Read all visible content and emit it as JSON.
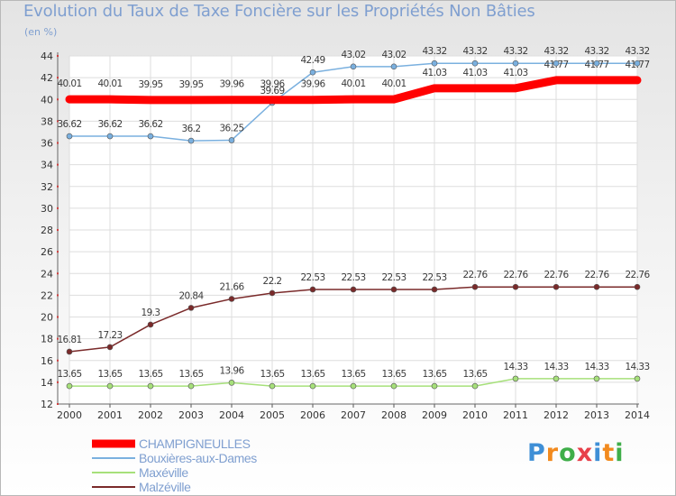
{
  "title": "Evolution du Taux de Taxe Foncière sur les Propriétés Non Bâties",
  "unit": "(en %)",
  "logo": {
    "letters": [
      "P",
      "r",
      "o",
      "x",
      "i",
      "t",
      "i"
    ],
    "colors": [
      "#3f8fd6",
      "#f28a1e",
      "#3fae49",
      "#e8404a",
      "#3f8fd6",
      "#f28a1e",
      "#3fae49"
    ]
  },
  "chart_data": {
    "type": "line",
    "title": "Evolution du Taux de Taxe Foncière sur les Propriétés Non Bâties",
    "ylabel": "(en %)",
    "xlabel": "",
    "ylim": [
      12,
      44
    ],
    "yticks": [
      12,
      14,
      16,
      18,
      20,
      22,
      24,
      26,
      28,
      30,
      32,
      34,
      36,
      38,
      40,
      42,
      44
    ],
    "x": [
      "2000",
      "2001",
      "2002",
      "2003",
      "2004",
      "2005",
      "2006",
      "2007",
      "2008",
      "2009",
      "2010",
      "2011",
      "2012",
      "2013",
      "2014"
    ],
    "grid": true,
    "series": [
      {
        "name": "CHAMPIGNEULLES",
        "color": "#ff0000",
        "values": [
          40.01,
          40.01,
          39.95,
          39.95,
          39.96,
          39.96,
          39.96,
          40.01,
          40.01,
          41.03,
          41.03,
          41.03,
          41.77,
          41.77,
          41.77
        ],
        "labels": [
          "40.01",
          "40.01",
          "39.95",
          "39.95",
          "39.96",
          "39.96",
          "39.96",
          "40.01",
          "40.01",
          "41.03",
          "41.03",
          "41.03",
          "41.77",
          "41.77",
          "41.77"
        ]
      },
      {
        "name": "Bouxières-aux-Dames",
        "color": "#7ab0df",
        "values": [
          36.62,
          36.62,
          36.62,
          36.2,
          36.25,
          39.69,
          42.49,
          43.02,
          43.02,
          43.32,
          43.32,
          43.32,
          43.32,
          43.32,
          43.32
        ],
        "labels": [
          "36.62",
          "36.62",
          "36.62",
          "36.2",
          "36.25",
          "39.69",
          "42.49",
          "43.02",
          "43.02",
          "43.32",
          "43.32",
          "43.32",
          "43.32",
          "43.32",
          "43.32"
        ]
      },
      {
        "name": "Maxéville",
        "color": "#a6e07a",
        "values": [
          13.65,
          13.65,
          13.65,
          13.65,
          13.96,
          13.65,
          13.65,
          13.65,
          13.65,
          13.65,
          13.65,
          14.33,
          14.33,
          14.33,
          14.33
        ],
        "labels": [
          "13.65",
          "13.65",
          "13.65",
          "13.65",
          "13.96",
          "13.65",
          "13.65",
          "13.65",
          "13.65",
          "13.65",
          "13.65",
          "14.33",
          "14.33",
          "14.33",
          "14.33"
        ]
      },
      {
        "name": "Malzéville",
        "color": "#7a2a2a",
        "values": [
          16.81,
          17.23,
          19.3,
          20.84,
          21.66,
          22.2,
          22.53,
          22.53,
          22.53,
          22.53,
          22.76,
          22.76,
          22.76,
          22.76,
          22.76
        ],
        "labels": [
          "16.81",
          "17.23",
          "19.3",
          "20.84",
          "21.66",
          "22.2",
          "22.53",
          "22.53",
          "22.53",
          "22.53",
          "22.76",
          "22.76",
          "22.76",
          "22.76",
          "22.76"
        ]
      }
    ],
    "legend": "bottom-left"
  }
}
